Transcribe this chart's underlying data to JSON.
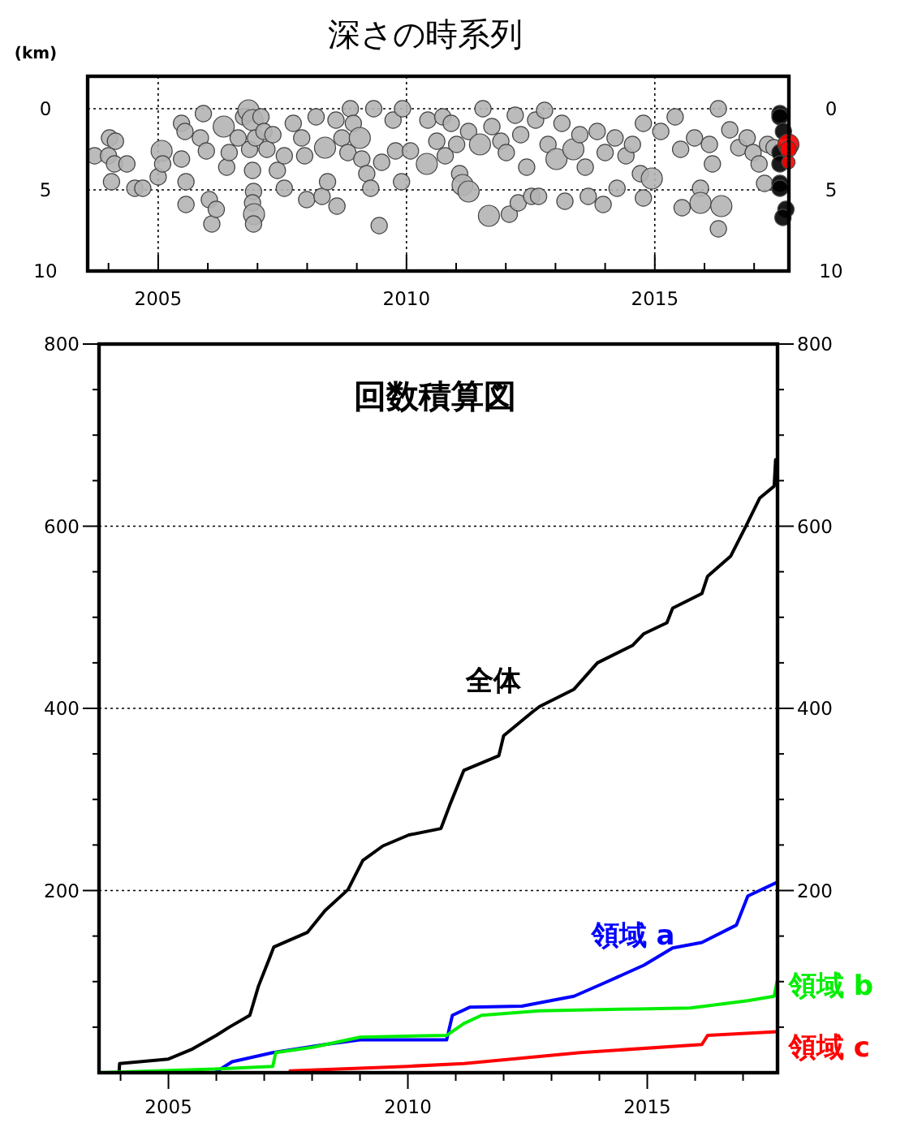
{
  "chart_data": [
    {
      "type": "bubble",
      "title": "深さの時系列",
      "ylabel": "(km)",
      "grid": true,
      "marker": "circle",
      "xlim": [
        2003.58,
        2017.7
      ],
      "ylim": [
        10,
        -2
      ],
      "y2lim": [
        10,
        -2
      ],
      "xticks": [
        {
          "value": 2004,
          "label": null
        },
        2005,
        {
          "value": 2006,
          "label": null
        },
        {
          "value": 2007,
          "label": null
        },
        {
          "value": 2008,
          "label": null
        },
        {
          "value": 2009,
          "label": null
        },
        2010,
        {
          "value": 2011,
          "label": null
        },
        {
          "value": 2012,
          "label": null
        },
        {
          "value": 2013,
          "label": null
        },
        {
          "value": 2014,
          "label": null
        },
        2015,
        {
          "value": 2016,
          "label": null
        },
        {
          "value": 2017,
          "label": null
        }
      ],
      "yticks": [
        0,
        5,
        10
      ],
      "y2ticks": [
        0,
        5,
        10
      ],
      "series": [
        {
          "color": "#b4b4b4",
          "x": [
            2003.72,
            2004.02,
            2004.14,
            2004.0,
            2004.12,
            2004.06,
            2004.37,
            2004.53,
            2004.69,
            2005.0,
            2005.07,
            2005.09,
            2005.47,
            2005.54,
            2005.47,
            2005.56,
            2005.56,
            2005.91,
            2005.85,
            2005.97,
            2006.03,
            2006.08,
            2006.17,
            2006.32,
            2006.38,
            2006.43,
            2006.61,
            2006.72,
            2006.82,
            2006.9,
            2006.84,
            2006.9,
            2006.96,
            2006.92,
            2006.9,
            2006.93,
            2006.92,
            2007.07,
            2007.13,
            2007.19,
            2007.31,
            2007.4,
            2007.54,
            2007.54,
            2007.72,
            2007.89,
            2007.95,
            2007.99,
            2008.18,
            2008.3,
            2008.36,
            2008.41,
            2008.6,
            2008.58,
            2008.7,
            2008.82,
            2008.87,
            2008.93,
            2009.06,
            2009.1,
            2009.2,
            2009.28,
            2009.34,
            2009.45,
            2009.5,
            2009.73,
            2009.78,
            2009.9,
            2009.92,
            2010.08,
            2010.41,
            2010.43,
            2010.61,
            2010.73,
            2010.78,
            2010.9,
            2011.07,
            2011.13,
            2011.25,
            2011.01,
            2011.25,
            2011.54,
            2011.48,
            2011.66,
            2011.72,
            2011.9,
            2012.07,
            2012.01,
            2012.19,
            2012.25,
            2012.3,
            2012.42,
            2012.52,
            2012.6,
            2012.66,
            2012.78,
            2012.85,
            2013.02,
            2013.19,
            2013.13,
            2013.36,
            2013.49,
            2013.6,
            2013.66,
            2013.84,
            2013.96,
            2014.0,
            2014.2,
            2014.24,
            2014.42,
            2014.55,
            2014.71,
            2014.77,
            2014.77,
            2014.94,
            2015.12,
            2015.41,
            2015.52,
            2015.55,
            2015.8,
            2015.92,
            2015.92,
            2016.1,
            2016.16,
            2016.28,
            2016.34,
            2016.28,
            2016.51,
            2016.69,
            2016.86,
            2016.98,
            2017.1,
            2017.21,
            2017.27,
            2017.4
          ],
          "values": [
            2.9,
            1.8,
            2.0,
            2.9,
            3.4,
            4.5,
            3.4,
            4.9,
            4.9,
            4.2,
            2.6,
            3.4,
            0.9,
            1.4,
            3.1,
            4.5,
            5.9,
            0.3,
            1.8,
            2.6,
            5.6,
            7.1,
            6.2,
            1.1,
            3.6,
            2.7,
            1.8,
            0.5,
            0.1,
            0.7,
            2.5,
            3.8,
            1.8,
            5.1,
            5.8,
            6.5,
            7.1,
            0.5,
            1.4,
            2.5,
            1.6,
            3.8,
            2.9,
            4.9,
            0.9,
            1.8,
            2.9,
            5.6,
            0.5,
            5.4,
            2.4,
            4.5,
            6.0,
            0.7,
            1.8,
            2.7,
            0.0,
            0.9,
            1.8,
            3.1,
            4.0,
            4.9,
            0.0,
            7.2,
            3.3,
            0.7,
            2.6,
            4.5,
            0.0,
            2.6,
            3.4,
            0.7,
            2.0,
            0.5,
            2.9,
            0.9,
            4.0,
            4.7,
            5.1,
            2.2,
            1.4,
            0.0,
            2.2,
            6.6,
            1.1,
            2.0,
            6.5,
            2.7,
            0.4,
            5.8,
            1.6,
            3.6,
            5.4,
            0.7,
            5.4,
            0.1,
            2.2,
            3.1,
            5.7,
            0.9,
            2.5,
            1.6,
            3.6,
            5.4,
            1.4,
            5.9,
            2.7,
            1.8,
            4.9,
            2.9,
            2.2,
            4.0,
            0.9,
            5.5,
            4.3,
            1.4,
            0.5,
            2.5,
            6.1,
            1.8,
            4.9,
            5.8,
            2.2,
            3.4,
            0.0,
            6.0,
            7.4,
            1.3,
            2.4,
            1.8,
            2.7,
            3.4,
            4.6,
            2.2,
            2.4
          ],
          "sizes": [
            0.6,
            0.6,
            0.6,
            0.6,
            0.6,
            0.6,
            0.6,
            0.6,
            0.6,
            0.6,
            1,
            0.6,
            0.6,
            0.6,
            0.6,
            0.6,
            0.6,
            0.6,
            0.6,
            0.6,
            0.6,
            0.6,
            0.6,
            1,
            0.6,
            0.6,
            0.6,
            0.6,
            1,
            1,
            0.6,
            0.6,
            0.6,
            0.6,
            0.6,
            1,
            0.6,
            0.6,
            0.6,
            0.6,
            0.6,
            0.6,
            0.6,
            0.6,
            0.6,
            0.6,
            0.6,
            0.6,
            0.6,
            0.6,
            1,
            0.6,
            0.6,
            0.6,
            0.6,
            0.6,
            0.6,
            0.6,
            1,
            0.6,
            0.6,
            0.6,
            0.6,
            0.6,
            0.6,
            0.6,
            0.6,
            0.6,
            0.6,
            0.6,
            1,
            0.6,
            0.6,
            0.6,
            0.6,
            0.6,
            0.6,
            1,
            1,
            0.6,
            0.6,
            0.6,
            1,
            1,
            0.6,
            0.6,
            0.6,
            0.6,
            0.6,
            0.6,
            0.6,
            0.6,
            0.6,
            0.6,
            0.6,
            0.6,
            0.6,
            1,
            0.6,
            0.6,
            1,
            0.6,
            0.6,
            0.6,
            0.6,
            0.6,
            0.6,
            0.6,
            0.6,
            0.6,
            0.6,
            0.6,
            0.6,
            0.6,
            1,
            0.6,
            0.6,
            0.6,
            0.6,
            0.6,
            0.6,
            1,
            0.6,
            0.6,
            0.6,
            1,
            0.6,
            0.6,
            0.6,
            0.6,
            0.6,
            0.6,
            0.6,
            0.6,
            0.6
          ]
        },
        {
          "color": "#000000",
          "x": [
            2017.52,
            2017.52,
            2017.59,
            2017.52,
            2017.52,
            2017.52,
            2017.52,
            2017.64,
            2017.58
          ],
          "values": [
            0.3,
            0.5,
            1.4,
            2.7,
            3.4,
            4.6,
            4.9,
            6.2,
            6.7
          ],
          "sizes": [
            0.6,
            0.6,
            0.6,
            0.6,
            0.6,
            0.6,
            0.6,
            0.6,
            0.6
          ]
        },
        {
          "color": "#ff0000",
          "x": [
            2017.69,
            2017.69,
            2017.69
          ],
          "values": [
            2.2,
            2.5,
            3.3
          ],
          "sizes": [
            1,
            0.6,
            0.4
          ]
        }
      ]
    },
    {
      "type": "line",
      "title": "回数積算図",
      "grid": "y",
      "line_style": "solid",
      "xlim": [
        2003.55,
        2017.72
      ],
      "ylim": [
        0,
        800
      ],
      "y2lim": [
        0,
        800
      ],
      "xticks": [
        {
          "value": 2004,
          "label": null
        },
        2005,
        {
          "value": 2006,
          "label": null
        },
        {
          "value": 2007,
          "label": null
        },
        {
          "value": 2008,
          "label": null
        },
        {
          "value": 2009,
          "label": null
        },
        2010,
        {
          "value": 2011,
          "label": null
        },
        {
          "value": 2012,
          "label": null
        },
        {
          "value": 2013,
          "label": null
        },
        {
          "value": 2014,
          "label": null
        },
        2015,
        {
          "value": 2016,
          "label": null
        },
        {
          "value": 2017,
          "label": null
        }
      ],
      "yticks": [
        {
          "value": 50,
          "label": null
        },
        {
          "value": 100,
          "label": null
        },
        {
          "value": 150,
          "label": null
        },
        200,
        {
          "value": 250,
          "label": null
        },
        {
          "value": 300,
          "label": null
        },
        {
          "value": 350,
          "label": null
        },
        400,
        {
          "value": 450,
          "label": null
        },
        {
          "value": 500,
          "label": null
        },
        {
          "value": 550,
          "label": null
        },
        600,
        {
          "value": 650,
          "label": null
        },
        {
          "value": 700,
          "label": null
        },
        {
          "value": 750,
          "label": null
        },
        800
      ],
      "y2ticks": [
        {
          "value": 50,
          "label": null
        },
        {
          "value": 100,
          "label": null
        },
        {
          "value": 150,
          "label": null
        },
        200,
        {
          "value": 250,
          "label": null
        },
        {
          "value": 300,
          "label": null
        },
        {
          "value": 350,
          "label": null
        },
        400,
        {
          "value": 450,
          "label": null
        },
        {
          "value": 500,
          "label": null
        },
        {
          "value": 550,
          "label": null
        },
        600,
        {
          "value": 650,
          "label": null
        },
        {
          "value": 700,
          "label": null
        },
        {
          "value": 750,
          "label": null
        },
        800
      ],
      "series": [
        {
          "name": "全体",
          "color": "#000000",
          "x": [
            2003.55,
            2003.97,
            2003.98,
            2005.0,
            2005.5,
            2006.0,
            2006.27,
            2006.7,
            2006.88,
            2007.12,
            2007.2,
            2007.9,
            2008.27,
            2008.75,
            2009.06,
            2009.48,
            2010.02,
            2010.69,
            2010.87,
            2011.17,
            2011.9,
            2012.0,
            2012.6,
            2012.75,
            2013.47,
            2013.96,
            2014.69,
            2014.93,
            2015.41,
            2015.53,
            2016.14,
            2016.26,
            2016.74,
            2017.05,
            2017.35,
            2017.65,
            2017.68
          ],
          "values": [
            0,
            0,
            10,
            15,
            26,
            41,
            50,
            63,
            95,
            127,
            138,
            154,
            178,
            201,
            233,
            249,
            261,
            268,
            293,
            332,
            348,
            370,
            396,
            402,
            421,
            450,
            469,
            482,
            494,
            510,
            526,
            545,
            567,
            599,
            631,
            644,
            673
          ]
        },
        {
          "name": "領域 a",
          "color": "#0000ff",
          "x": [
            2005.97,
            2006.33,
            2007.18,
            2008.27,
            2009.0,
            2010.81,
            2010.93,
            2011.3,
            2012.38,
            2013.47,
            2014.08,
            2014.93,
            2015.53,
            2016.14,
            2016.86,
            2017.1,
            2017.71
          ],
          "values": [
            0,
            12,
            22,
            31,
            36,
            36,
            63,
            72,
            73,
            84,
            98,
            118,
            137,
            143,
            162,
            194,
            209
          ]
        },
        {
          "name": "領域 b",
          "color": "#00ee00",
          "x": [
            2003.55,
            2005.97,
            2007.18,
            2007.24,
            2008.03,
            2009.0,
            2010.81,
            2011.17,
            2011.54,
            2012.75,
            2014.8,
            2015.9,
            2017.1,
            2017.65,
            2017.71
          ],
          "values": [
            0,
            4,
            7,
            22,
            28,
            39,
            41,
            54,
            63,
            68,
            70,
            71,
            79,
            84,
            100
          ]
        },
        {
          "name": "領域 c",
          "color": "#ff0000",
          "x": [
            2007.54,
            2010.0,
            2011.17,
            2013.6,
            2016.14,
            2016.26,
            2017.71
          ],
          "values": [
            2,
            7,
            10,
            22,
            31,
            41,
            45
          ]
        }
      ]
    }
  ]
}
